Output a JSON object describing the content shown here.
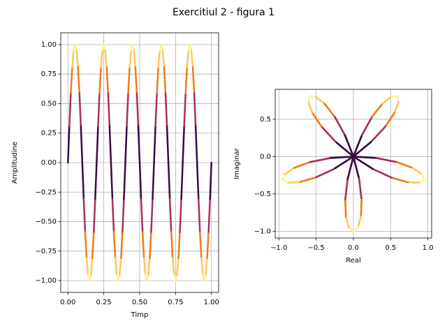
{
  "title": "Exercitiul 2 - figura 1",
  "chart_data": [
    {
      "type": "line",
      "x_label": "Timp",
      "y_label": "Amplitudine",
      "colormap": "inferno",
      "grid": true,
      "xlim": [
        -0.05,
        1.05
      ],
      "ylim": [
        -1.1,
        1.1
      ],
      "xticks": [
        {
          "value": 0,
          "label": "0.00"
        },
        {
          "value": 0.25,
          "label": "0.25"
        },
        {
          "value": 0.5,
          "label": "0.50"
        },
        {
          "value": 0.75,
          "label": "0.75"
        },
        {
          "value": 1,
          "label": "1.00"
        }
      ],
      "yticks": [
        {
          "value": -1,
          "label": "−1.00"
        },
        {
          "value": -0.75,
          "label": "−0.75"
        },
        {
          "value": -0.5,
          "label": "−0.50"
        },
        {
          "value": -0.25,
          "label": "−0.25"
        },
        {
          "value": 0,
          "label": "0.00"
        },
        {
          "value": 0.25,
          "label": "0.25"
        },
        {
          "value": 0.5,
          "label": "0.50"
        },
        {
          "value": 0.75,
          "label": "0.75"
        },
        {
          "value": 1,
          "label": "1.00"
        }
      ],
      "x": [
        0,
        0.01,
        0.02,
        0.03,
        0.04,
        0.05,
        0.06,
        0.07,
        0.08,
        0.09,
        0.1,
        0.11,
        0.12,
        0.13,
        0.14,
        0.15,
        0.16,
        0.17,
        0.18,
        0.19,
        0.2,
        0.21,
        0.22,
        0.23,
        0.24,
        0.25,
        0.26,
        0.27,
        0.28,
        0.29,
        0.3,
        0.31,
        0.32,
        0.33,
        0.34,
        0.35,
        0.36,
        0.37,
        0.38,
        0.39,
        0.4,
        0.41,
        0.42,
        0.43,
        0.44,
        0.45,
        0.46,
        0.47,
        0.48,
        0.49,
        0.5,
        0.51,
        0.52,
        0.53,
        0.54,
        0.55,
        0.56,
        0.57,
        0.58,
        0.59,
        0.6,
        0.61,
        0.62,
        0.63,
        0.64,
        0.65,
        0.66,
        0.67,
        0.68,
        0.69,
        0.7,
        0.71,
        0.72,
        0.73,
        0.74,
        0.75,
        0.76,
        0.77,
        0.78,
        0.79,
        0.8,
        0.81,
        0.82,
        0.83,
        0.84,
        0.85,
        0.86,
        0.87,
        0.88,
        0.89,
        0.9,
        0.91,
        0.92,
        0.93,
        0.94,
        0.95,
        0.96,
        0.97,
        0.98,
        0.99,
        1
      ],
      "series": [
        {
          "values": [
            0,
            0.309,
            0.588,
            0.809,
            0.951,
            1,
            0.951,
            0.809,
            0.588,
            0.309,
            0,
            -0.309,
            -0.588,
            -0.809,
            -0.951,
            -1,
            -0.951,
            -0.809,
            -0.588,
            -0.309,
            0,
            0.309,
            0.588,
            0.809,
            0.951,
            1,
            0.951,
            0.809,
            0.588,
            0.309,
            0,
            -0.309,
            -0.588,
            -0.809,
            -0.951,
            -1,
            -0.951,
            -0.809,
            -0.588,
            -0.309,
            0,
            0.309,
            0.588,
            0.809,
            0.951,
            1,
            0.951,
            0.809,
            0.588,
            0.309,
            0,
            -0.309,
            -0.588,
            -0.809,
            -0.951,
            -1,
            -0.951,
            -0.809,
            -0.588,
            -0.309,
            0,
            0.309,
            0.588,
            0.809,
            0.951,
            1,
            0.951,
            0.809,
            0.588,
            0.309,
            0,
            -0.309,
            -0.588,
            -0.809,
            -0.951,
            -1,
            -0.951,
            -0.809,
            -0.588,
            -0.309,
            0,
            0.309,
            0.588,
            0.809,
            0.951,
            1,
            0.951,
            0.809,
            0.588,
            0.309,
            0,
            -0.309,
            -0.588,
            -0.809,
            -0.951,
            -1,
            -0.951,
            -0.809,
            -0.588,
            -0.309,
            0
          ]
        }
      ]
    },
    {
      "type": "line",
      "x_label": "Real",
      "y_label": "Imaginar",
      "colormap": "inferno",
      "grid": true,
      "xlim": [
        -1.05,
        1.05
      ],
      "ylim": [
        -1.09,
        0.9
      ],
      "xticks": [
        {
          "value": -1,
          "label": "−1.0"
        },
        {
          "value": -0.5,
          "label": "−0.5"
        },
        {
          "value": 0,
          "label": "0.0"
        },
        {
          "value": 0.5,
          "label": "0.5"
        },
        {
          "value": 1,
          "label": "1.0"
        }
      ],
      "yticks": [
        {
          "value": -1,
          "label": "−1.0"
        },
        {
          "value": -0.5,
          "label": "−0.5"
        },
        {
          "value": 0,
          "label": "0.0"
        },
        {
          "value": 0.5,
          "label": "0.5"
        }
      ],
      "x": [
        0,
        0.308,
        0.583,
        0.795,
        0.921,
        0.951,
        0.884,
        0.732,
        0.515,
        0.261,
        0,
        -0.238,
        -0.429,
        -0.554,
        -0.606,
        -0.588,
        -0.51,
        -0.39,
        -0.25,
        -0.114,
        0,
        0.077,
        0.11,
        0.101,
        0.06,
        0,
        -0.06,
        -0.101,
        -0.11,
        -0.077,
        0,
        0.114,
        0.25,
        0.39,
        0.51,
        0.588,
        0.606,
        0.554,
        0.429,
        0.238,
        0,
        -0.261,
        -0.515,
        -0.732,
        -0.884,
        -0.951,
        -0.921,
        -0.795,
        -0.583,
        -0.308,
        0,
        0.308,
        0.583,
        0.795,
        0.921,
        0.951,
        0.884,
        0.732,
        0.515,
        0.261,
        0,
        -0.238,
        -0.429,
        -0.554,
        -0.606,
        -0.588,
        -0.51,
        -0.39,
        -0.25,
        -0.114,
        0,
        0.077,
        0.11,
        0.101,
        0.06,
        0,
        -0.06,
        -0.101,
        -0.11,
        -0.077,
        0,
        0.114,
        0.25,
        0.39,
        0.51,
        0.588,
        0.606,
        0.554,
        0.429,
        0.238,
        0,
        -0.261,
        -0.515,
        -0.732,
        -0.884,
        -0.951,
        -0.921,
        -0.795,
        -0.583,
        -0.308,
        0
      ],
      "series": [
        {
          "values": [
            0,
            -0.019,
            -0.074,
            -0.152,
            -0.237,
            -0.309,
            -0.35,
            -0.344,
            -0.283,
            -0.166,
            0,
            0.197,
            0.402,
            0.59,
            0.733,
            0.809,
            0.803,
            0.709,
            0.532,
            0.287,
            0,
            -0.299,
            -0.578,
            -0.803,
            -0.949,
            -1,
            -0.949,
            -0.803,
            -0.578,
            -0.299,
            0,
            0.287,
            0.532,
            0.709,
            0.803,
            0.809,
            0.733,
            0.59,
            0.402,
            0.197,
            0,
            -0.166,
            -0.283,
            -0.344,
            -0.35,
            -0.309,
            -0.237,
            -0.152,
            -0.074,
            -0.019,
            0,
            -0.019,
            -0.074,
            -0.152,
            -0.237,
            -0.309,
            -0.35,
            -0.344,
            -0.283,
            -0.166,
            0,
            0.197,
            0.402,
            0.59,
            0.733,
            0.809,
            0.803,
            0.709,
            0.532,
            0.287,
            0,
            -0.299,
            -0.578,
            -0.803,
            -0.949,
            -1,
            -0.949,
            -0.803,
            -0.578,
            -0.299,
            0,
            0.287,
            0.532,
            0.709,
            0.803,
            0.809,
            0.733,
            0.59,
            0.402,
            0.197,
            0,
            -0.166,
            -0.283,
            -0.344,
            -0.35,
            -0.309,
            -0.237,
            -0.152,
            -0.074,
            -0.019,
            0
          ]
        }
      ]
    }
  ]
}
